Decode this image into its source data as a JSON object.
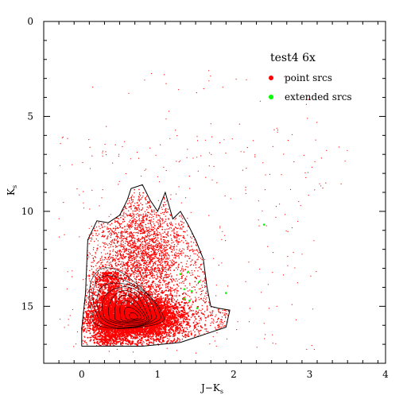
{
  "chart_data": {
    "type": "scatter",
    "title": "test4 6x",
    "xlabel": "J−K",
    "xlabel_sub": "s",
    "ylabel": "K",
    "ylabel_sub": "s",
    "xlim": [
      -0.5,
      4
    ],
    "ylim": [
      18,
      0
    ],
    "x_ticks": [
      "0",
      "1",
      "2",
      "3",
      "4"
    ],
    "y_ticks": [
      "0",
      "5",
      "10",
      "15"
    ],
    "legend_position": "top-right",
    "grid": false,
    "series": [
      {
        "name": "point srcs",
        "color": "#ff0000",
        "distribution": {
          "dense_core": {
            "x_center": 0.7,
            "y_center": 15.6,
            "x_spread": 0.4,
            "y_spread": 0.7
          },
          "plume": {
            "x_center": 0.8,
            "y_center": 12.3,
            "x_spread": 0.25,
            "y_spread": 1.4
          },
          "halo": {
            "x_range": [
              0.0,
              2.0
            ],
            "y_range": [
              9.0,
              17.2
            ]
          }
        },
        "contour_outline": [
          [
            0.0,
            17.1
          ],
          [
            0.0,
            16.2
          ],
          [
            0.05,
            14.3
          ],
          [
            0.08,
            11.5
          ],
          [
            0.2,
            10.5
          ],
          [
            0.35,
            10.6
          ],
          [
            0.5,
            10.2
          ],
          [
            0.6,
            9.4
          ],
          [
            0.65,
            8.8
          ],
          [
            0.8,
            8.6
          ],
          [
            0.9,
            9.4
          ],
          [
            1.0,
            10.0
          ],
          [
            1.05,
            9.5
          ],
          [
            1.1,
            9.0
          ],
          [
            1.2,
            10.4
          ],
          [
            1.3,
            10.0
          ],
          [
            1.4,
            10.7
          ],
          [
            1.5,
            11.5
          ],
          [
            1.6,
            12.5
          ],
          [
            1.65,
            14.0
          ],
          [
            1.7,
            15.0
          ],
          [
            1.8,
            15.1
          ],
          [
            1.95,
            15.2
          ],
          [
            1.9,
            16.1
          ],
          [
            1.6,
            16.5
          ],
          [
            1.3,
            16.9
          ],
          [
            0.8,
            17.1
          ],
          [
            0.3,
            17.1
          ],
          [
            0.0,
            17.1
          ]
        ]
      },
      {
        "name": "extended srcs",
        "color": "#00ff00",
        "points": [
          [
            2.4,
            10.7
          ],
          [
            1.9,
            14.3
          ],
          [
            1.35,
            14.6
          ],
          [
            1.45,
            14.2
          ],
          [
            1.55,
            13.7
          ],
          [
            1.3,
            13.3
          ],
          [
            1.4,
            13.2
          ],
          [
            1.35,
            14.1
          ],
          [
            1.42,
            14.7
          ],
          [
            1.52,
            15.1
          ]
        ]
      }
    ]
  }
}
